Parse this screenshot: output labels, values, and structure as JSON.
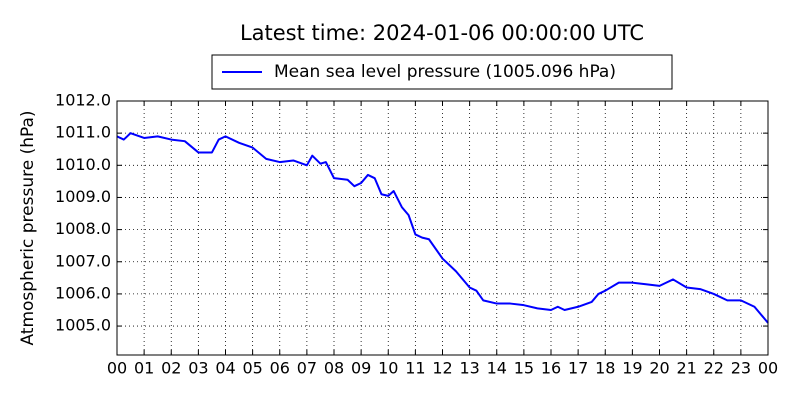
{
  "chart_data": {
    "type": "line",
    "title": "Latest time: 2024-01-06 00:00:00 UTC",
    "ylabel": "Atmospheric pressure (hPa)",
    "x": [
      0,
      0.25,
      0.5,
      1,
      1.5,
      2,
      2.5,
      3,
      3.5,
      3.75,
      4,
      4.5,
      5,
      5.5,
      6,
      6.5,
      7,
      7.2,
      7.5,
      7.7,
      8,
      8.5,
      8.75,
      9,
      9.25,
      9.5,
      9.75,
      10,
      10.2,
      10.5,
      10.75,
      11,
      11.25,
      11.5,
      12,
      12.5,
      13,
      13.25,
      13.5,
      14,
      14.5,
      15,
      15.5,
      16,
      16.25,
      16.5,
      17,
      17.5,
      17.75,
      18,
      18.5,
      19,
      19.5,
      20,
      20.25,
      20.5,
      21,
      21.5,
      22,
      22.5,
      23,
      23.5,
      24
    ],
    "series": [
      {
        "name": "Mean sea level pressure (1005.096 hPa)",
        "color": "#0000ff",
        "values": [
          1010.9,
          1010.8,
          1011.0,
          1010.85,
          1010.9,
          1010.8,
          1010.75,
          1010.4,
          1010.4,
          1010.8,
          1010.9,
          1010.7,
          1010.55,
          1010.2,
          1010.1,
          1010.15,
          1010.0,
          1010.3,
          1010.05,
          1010.1,
          1009.6,
          1009.55,
          1009.35,
          1009.45,
          1009.7,
          1009.6,
          1009.1,
          1009.05,
          1009.2,
          1008.7,
          1008.45,
          1007.85,
          1007.75,
          1007.7,
          1007.1,
          1006.7,
          1006.2,
          1006.1,
          1005.8,
          1005.7,
          1005.7,
          1005.65,
          1005.55,
          1005.5,
          1005.6,
          1005.5,
          1005.6,
          1005.75,
          1006.0,
          1006.1,
          1006.35,
          1006.35,
          1006.3,
          1006.25,
          1006.35,
          1006.45,
          1006.2,
          1006.15,
          1006.0,
          1005.8,
          1005.8,
          1005.6,
          1005.1
        ]
      }
    ],
    "xlim": [
      0,
      24
    ],
    "xticks": [
      {
        "value": 0,
        "label": "00"
      },
      {
        "value": 1,
        "label": "01"
      },
      {
        "value": 2,
        "label": "02"
      },
      {
        "value": 3,
        "label": "03"
      },
      {
        "value": 4,
        "label": "04"
      },
      {
        "value": 5,
        "label": "05"
      },
      {
        "value": 6,
        "label": "06"
      },
      {
        "value": 7,
        "label": "07"
      },
      {
        "value": 8,
        "label": "08"
      },
      {
        "value": 9,
        "label": "09"
      },
      {
        "value": 10,
        "label": "10"
      },
      {
        "value": 11,
        "label": "11"
      },
      {
        "value": 12,
        "label": "12"
      },
      {
        "value": 13,
        "label": "13"
      },
      {
        "value": 14,
        "label": "14"
      },
      {
        "value": 15,
        "label": "15"
      },
      {
        "value": 16,
        "label": "16"
      },
      {
        "value": 17,
        "label": "17"
      },
      {
        "value": 18,
        "label": "18"
      },
      {
        "value": 19,
        "label": "19"
      },
      {
        "value": 20,
        "label": "20"
      },
      {
        "value": 21,
        "label": "21"
      },
      {
        "value": 22,
        "label": "22"
      },
      {
        "value": 23,
        "label": "23"
      },
      {
        "value": 24,
        "label": "00"
      }
    ],
    "ylim": [
      1004.1,
      1012.0
    ],
    "yticks": [
      {
        "value": 1005,
        "label": "1005.0"
      },
      {
        "value": 1006,
        "label": "1006.0"
      },
      {
        "value": 1007,
        "label": "1007.0"
      },
      {
        "value": 1008,
        "label": "1008.0"
      },
      {
        "value": 1009,
        "label": "1009.0"
      },
      {
        "value": 1010,
        "label": "1010.0"
      },
      {
        "value": 1011,
        "label": "1011.0"
      },
      {
        "value": 1012,
        "label": "1012.0"
      }
    ],
    "grid": true
  }
}
